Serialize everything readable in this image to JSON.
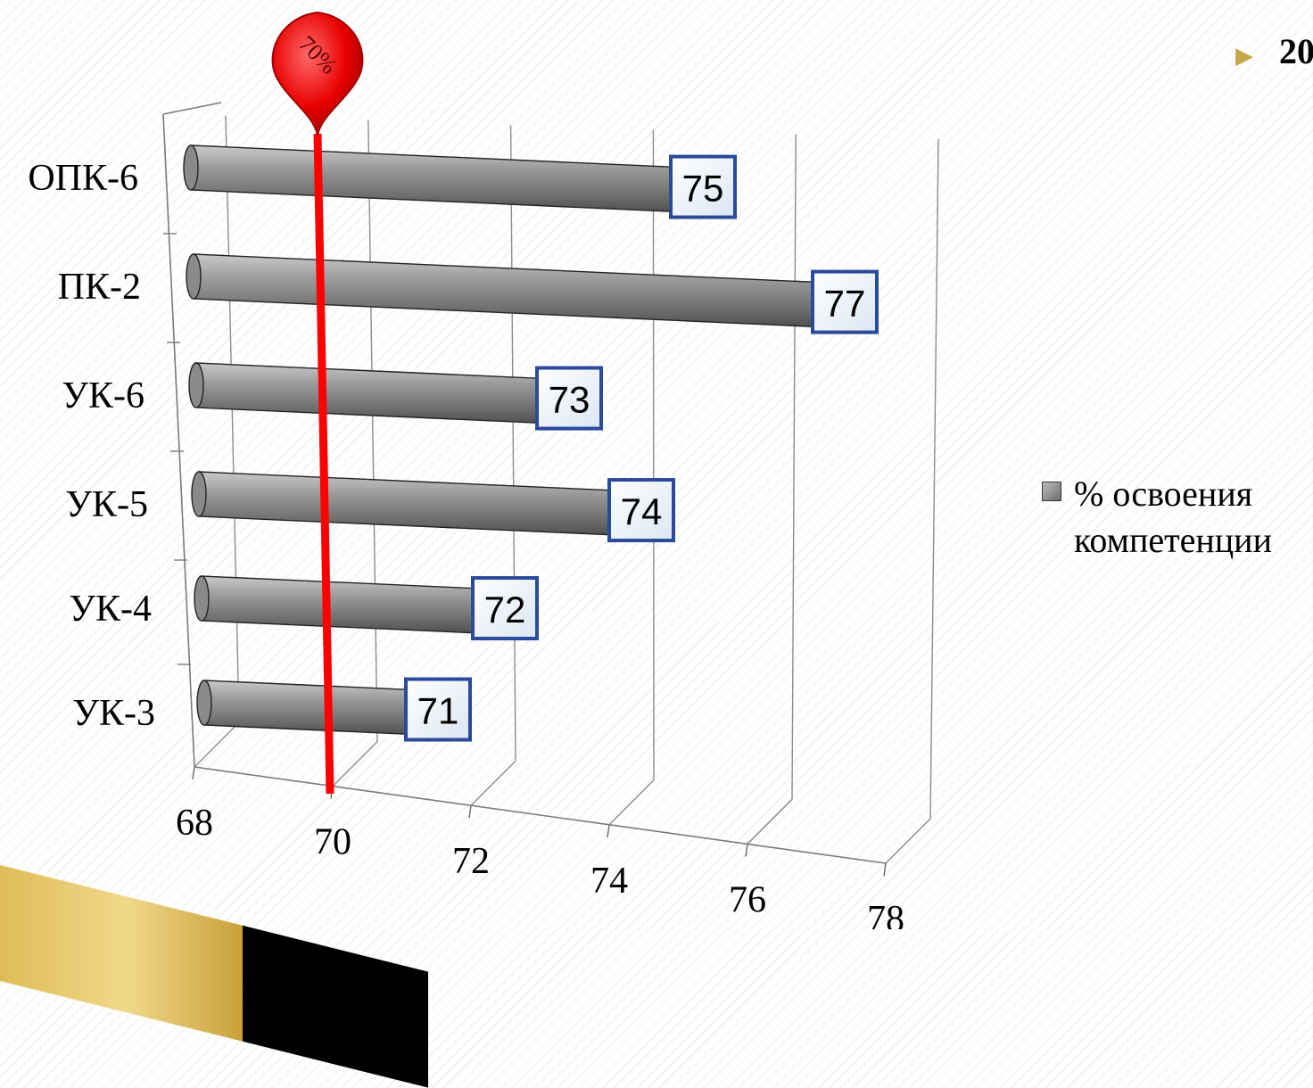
{
  "header": {
    "text": "20"
  },
  "chart_data": {
    "type": "bar",
    "orientation": "horizontal",
    "categories": [
      "ОПК-6",
      "ПК-2",
      "УК-6",
      "УК-5",
      "УК-4",
      "УК-3"
    ],
    "series": [
      {
        "name": "% освоения компетенции",
        "values": [
          75,
          77,
          73,
          74,
          72,
          71
        ]
      }
    ],
    "value_labels": [
      "75",
      "77",
      "73",
      "74",
      "72",
      "71"
    ],
    "x_ticks": [
      "68",
      "70",
      "72",
      "74",
      "76",
      "78"
    ],
    "xlim": [
      68,
      78
    ],
    "threshold": {
      "value": 70,
      "label": "70%"
    },
    "legend": {
      "position": "right",
      "entries": [
        "% освоения",
        "компетенции"
      ]
    },
    "grid": true
  },
  "colors": {
    "bar": "#8a8a8a",
    "threshold": "#ff0000",
    "label_border": "#2a4a9a",
    "accent": "#c6a84a"
  }
}
